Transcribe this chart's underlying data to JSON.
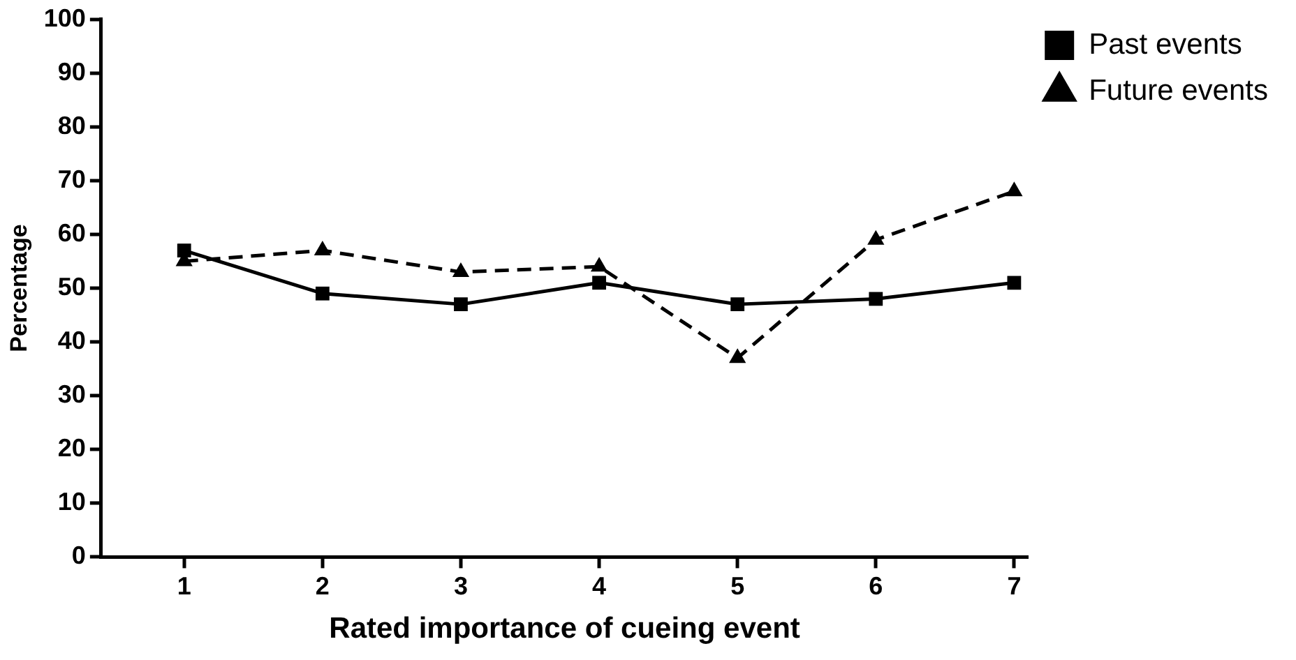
{
  "chart_data": {
    "type": "line",
    "xlabel": "Rated importance of cueing event",
    "ylabel": "Percentage",
    "x": [
      1,
      2,
      3,
      4,
      5,
      6,
      7
    ],
    "xlim": [
      0.4,
      7.1
    ],
    "xticks": [
      1,
      2,
      3,
      4,
      5,
      6,
      7
    ],
    "ylim": [
      0,
      100
    ],
    "yticks": [
      0,
      10,
      20,
      30,
      40,
      50,
      60,
      70,
      80,
      90,
      100
    ],
    "grid": false,
    "legend": "top right",
    "series": [
      {
        "name": "Past events",
        "color": "#000000",
        "marker": "square",
        "line_style": "solid",
        "values": [
          57,
          49,
          47,
          51,
          47,
          48,
          51
        ]
      },
      {
        "name": "Future events",
        "color": "#000000",
        "marker": "triangle",
        "line_style": "dashed",
        "values": [
          55,
          57,
          53,
          54,
          37,
          59,
          68
        ]
      }
    ]
  }
}
